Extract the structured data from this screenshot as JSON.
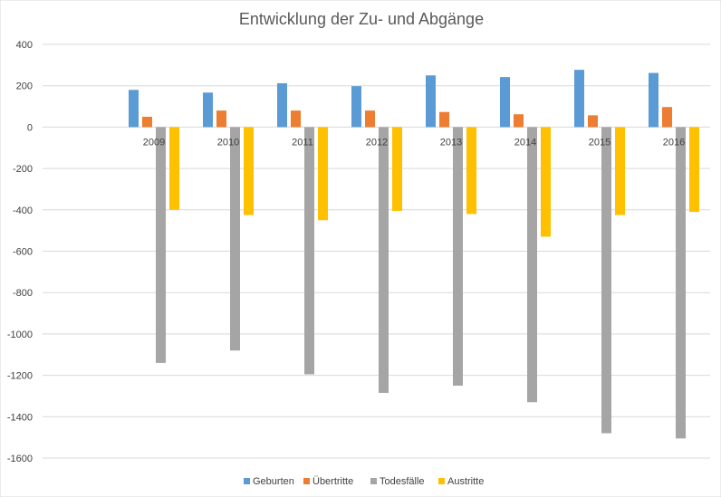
{
  "chart_data": {
    "type": "bar",
    "title": "Entwicklung der Zu- und Abgänge",
    "xlabel": "",
    "ylabel": "",
    "categories": [
      "2009",
      "2010",
      "2011",
      "2012",
      "2013",
      "2014",
      "2015",
      "2016"
    ],
    "ylim": [
      -1600,
      400
    ],
    "yticks": [
      400,
      200,
      0,
      -200,
      -400,
      -600,
      -800,
      -1000,
      -1200,
      -1400,
      -1600
    ],
    "grid": true,
    "legend": "bottom",
    "series": [
      {
        "name": "Geburten",
        "color": "#5B9BD5",
        "values": [
          180,
          167,
          212,
          198,
          250,
          242,
          277,
          262
        ]
      },
      {
        "name": "Übertritte",
        "color": "#ED7D31",
        "values": [
          50,
          80,
          80,
          80,
          73,
          62,
          57,
          97
        ]
      },
      {
        "name": "Todesfälle",
        "color": "#A5A5A5",
        "values": [
          -1140,
          -1080,
          -1195,
          -1285,
          -1250,
          -1330,
          -1480,
          -1505
        ]
      },
      {
        "name": "Austritte",
        "color": "#FFC000",
        "values": [
          -400,
          -425,
          -450,
          -405,
          -420,
          -530,
          -425,
          -410
        ]
      }
    ]
  }
}
